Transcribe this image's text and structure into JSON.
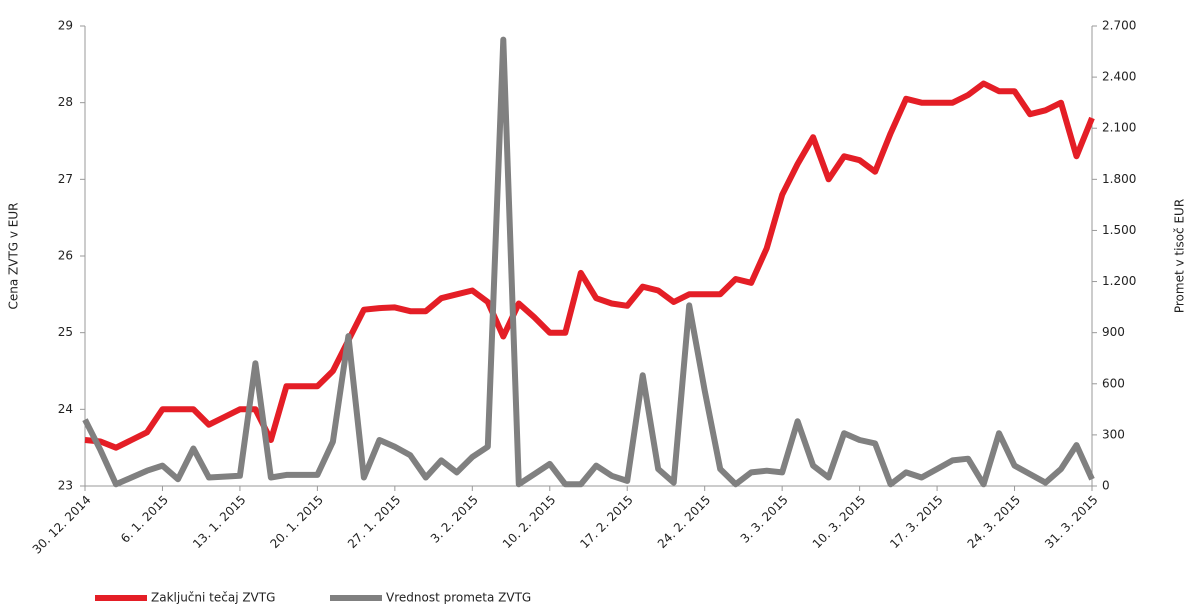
{
  "chart_data": {
    "type": "line",
    "categories": [
      "30. 12. 2014",
      null,
      null,
      null,
      null,
      "6. 1. 2015",
      null,
      null,
      null,
      null,
      "13. 1. 2015",
      null,
      null,
      null,
      null,
      "20. 1. 2015",
      null,
      null,
      null,
      null,
      "27. 1. 2015",
      null,
      null,
      null,
      null,
      "3. 2. 2015",
      null,
      null,
      null,
      null,
      "10. 2. 2015",
      null,
      null,
      null,
      null,
      "17. 2. 2015",
      null,
      null,
      null,
      null,
      "24. 2. 2015",
      null,
      null,
      null,
      null,
      "3. 3. 2015",
      null,
      null,
      null,
      null,
      "10. 3. 2015",
      null,
      null,
      null,
      null,
      "17. 3. 2015",
      null,
      null,
      null,
      null,
      "24. 3. 2015",
      null,
      null,
      null,
      null,
      "31. 3. 2015"
    ],
    "series": [
      {
        "name": "Zaključni tečaj ZVTG",
        "color": "#e41e26",
        "values": [
          23.6,
          23.58,
          23.5,
          23.6,
          23.7,
          24.0,
          24.0,
          24.0,
          23.8,
          23.9,
          24.0,
          24.0,
          23.6,
          24.3,
          24.3,
          24.3,
          24.5,
          24.9,
          25.3,
          25.32,
          25.33,
          25.28,
          25.28,
          25.45,
          25.5,
          25.55,
          25.4,
          24.95,
          25.38,
          25.2,
          25.0,
          25.0,
          25.78,
          25.45,
          25.38,
          25.35,
          25.6,
          25.55,
          25.4,
          25.5,
          25.5,
          25.5,
          25.7,
          25.65,
          26.1,
          26.8,
          27.2,
          27.55,
          27.0,
          27.3,
          27.25,
          27.1,
          27.6,
          28.05,
          28.0,
          28.0,
          28.0,
          28.1,
          28.25,
          28.15,
          28.15,
          27.85,
          27.9,
          28.0,
          27.3,
          27.8
        ]
      },
      {
        "name": "Vrednost prometa ZVTG",
        "color": "#808080",
        "axis": "y2",
        "values": [
          390,
          210,
          10,
          50,
          90,
          120,
          40,
          220,
          50,
          55,
          60,
          720,
          50,
          65,
          65,
          65,
          260,
          880,
          50,
          270,
          230,
          180,
          50,
          150,
          80,
          170,
          230,
          2620,
          10,
          70,
          130,
          10,
          10,
          120,
          60,
          30,
          650,
          100,
          20,
          1060,
          560,
          100,
          10,
          80,
          90,
          80,
          380,
          120,
          50,
          310,
          270,
          250,
          10,
          80,
          50,
          100,
          150,
          160,
          10,
          310,
          120,
          70,
          20,
          100,
          240,
          40
        ]
      }
    ],
    "ylabel": "Cena ZVTG v EUR",
    "y2label": "Promet v tisoč EUR",
    "ylim": [
      23,
      29
    ],
    "yticks": [
      23,
      24,
      25,
      26,
      27,
      28,
      29
    ],
    "y2lim": [
      0,
      2700
    ],
    "y2ticks": [
      0,
      300,
      600,
      900,
      {
        "value": 1200,
        "label": "1.200"
      },
      {
        "value": 1500,
        "label": "1.500"
      },
      {
        "value": 1800,
        "label": "1.800"
      },
      {
        "value": 2100,
        "label": "2.100"
      },
      {
        "value": 2400,
        "label": "2.400"
      },
      {
        "value": 2700,
        "label": "2.700"
      }
    ],
    "legend": "bottom-left"
  }
}
